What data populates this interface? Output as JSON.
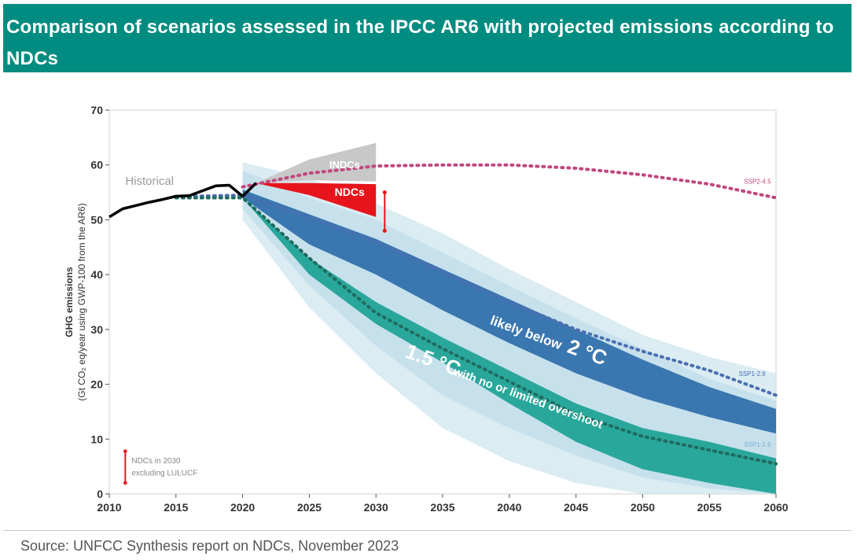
{
  "header": {
    "title": "Comparison of scenarios assessed in the IPCC AR6 with projected emissions according to NDCs"
  },
  "footer": {
    "source": "Source: UNFCC Synthesis report on NDCs, November 2023"
  },
  "colors": {
    "title_bg": "#008c80",
    "historical": "#000000",
    "ndc_conditional": "#e8141b",
    "indc": "#c8c8c8",
    "likely_below_2c": "#3a77b0",
    "below_1_5c": "#2aa79b",
    "ssp2": "#c0467f",
    "ssp1": "#4a6fb0",
    "range_light": "#cfe6ef"
  },
  "chart_data": {
    "type": "area",
    "ylabel_line1": "GHG emissions",
    "ylabel_line2": "(Gt CO₂ eq/year using GWP-100 from the AR6)",
    "xlim": [
      2010,
      2060
    ],
    "ylim": [
      0,
      70
    ],
    "x_ticks": [
      2010,
      2015,
      2020,
      2025,
      2030,
      2035,
      2040,
      2045,
      2050,
      2055,
      2060
    ],
    "y_ticks": [
      0,
      10,
      20,
      30,
      40,
      50,
      60,
      70
    ],
    "grid": false,
    "series": [
      {
        "name": "Historical",
        "kind": "line",
        "x": [
          2010,
          2011,
          2012,
          2013,
          2014,
          2015,
          2016,
          2017,
          2018,
          2019,
          2020,
          2021
        ],
        "y": [
          50.5,
          52.0,
          52.6,
          53.2,
          53.7,
          54.3,
          54.4,
          55.3,
          56.2,
          56.3,
          54.3,
          56.7
        ]
      },
      {
        "name": "INDCs",
        "kind": "band",
        "x": [
          2021,
          2025,
          2030
        ],
        "lower": [
          56.7,
          57.2,
          57.0
        ],
        "upper": [
          56.7,
          61.0,
          64.0
        ]
      },
      {
        "name": "NDCs",
        "kind": "band",
        "x": [
          2021,
          2025,
          2030
        ],
        "lower": [
          56.7,
          54.5,
          50.5
        ],
        "upper": [
          56.7,
          56.7,
          56.5
        ]
      },
      {
        "name": "likely below 2 °C",
        "kind": "band",
        "x": [
          2020,
          2025,
          2030,
          2035,
          2040,
          2045,
          2050,
          2055,
          2060
        ],
        "lower": [
          54.0,
          45.5,
          40.0,
          33.5,
          27.5,
          22.0,
          17.5,
          14.0,
          11.0
        ],
        "upper": [
          55.5,
          51.0,
          46.5,
          41.0,
          35.5,
          30.0,
          24.5,
          19.5,
          15.5
        ]
      },
      {
        "name": "1.5 °C with no or limited overshoot",
        "kind": "band",
        "x": [
          2020,
          2025,
          2030,
          2035,
          2040,
          2045,
          2050,
          2055,
          2060
        ],
        "lower": [
          54.0,
          40.0,
          31.0,
          24.0,
          16.5,
          9.5,
          4.5,
          2.0,
          0.0
        ],
        "upper": [
          54.0,
          43.0,
          35.0,
          28.5,
          22.5,
          16.5,
          12.0,
          9.5,
          6.5
        ]
      },
      {
        "name": "SSP2-4.5",
        "kind": "dotted",
        "x": [
          2020,
          2025,
          2030,
          2035,
          2040,
          2045,
          2050,
          2055,
          2060
        ],
        "y": [
          56.0,
          58.5,
          59.8,
          60.0,
          60.0,
          59.4,
          58.2,
          56.5,
          54.0
        ]
      },
      {
        "name": "SSP1-2.6",
        "kind": "dotted",
        "x": [
          2015,
          2020,
          2025,
          2030,
          2035,
          2040,
          2045,
          2050,
          2055,
          2060
        ],
        "y": [
          54.2,
          54.5,
          50.5,
          46.0,
          40.5,
          35.0,
          30.0,
          26.0,
          22.5,
          18.0
        ]
      },
      {
        "name": "SSP1-1.9",
        "kind": "dotted",
        "x": [
          2015,
          2020,
          2025,
          2030,
          2035,
          2040,
          2045,
          2050,
          2055,
          2060
        ],
        "y": [
          54.0,
          54.0,
          43.0,
          33.0,
          26.5,
          20.5,
          14.5,
          10.5,
          8.0,
          5.5
        ]
      }
    ],
    "ndc_range_bar": {
      "x": 2030.3,
      "y_low": 48.0,
      "y_high": 55.0
    },
    "annotations": {
      "historical": "Historical",
      "indcs": "INDCs",
      "ndcs": "NDCs",
      "likely_2c_a": "likely below",
      "likely_2c_b": "2 °C",
      "onefive_a": "1.5 °C",
      "onefive_b": "with no or limited overshoot",
      "ssp245": "SSP2-4.5",
      "ssp126": "SSP1-2.6",
      "ssp119": "SSP1-1.9",
      "legend_line1": "NDCs in 2030",
      "legend_line2": "excluding LULUCF"
    }
  }
}
